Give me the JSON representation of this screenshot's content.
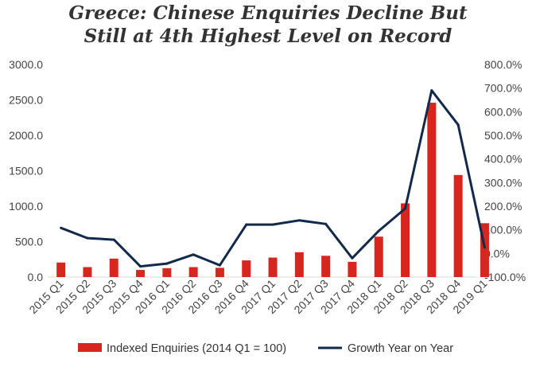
{
  "chart_data": {
    "type": "bar",
    "title": "Greece: Chinese Enquiries Decline But",
    "subtitle": "Still at 4th Highest Level on Record",
    "categories": [
      "2015 Q1",
      "2015 Q2",
      "2015 Q3",
      "2015 Q4",
      "2016 Q1",
      "2016 Q2",
      "2016 Q3",
      "2016 Q4",
      "2017 Q1",
      "2017 Q2",
      "2017 Q3",
      "2017 Q4",
      "2018 Q1",
      "2018 Q2",
      "2018 Q3",
      "2018 Q4",
      "2019 Q1"
    ],
    "series": [
      {
        "name": "Indexed Enquiries (2014 Q1 = 100)",
        "type": "bar",
        "axis": "left",
        "color": "#d7261e",
        "values": [
          205,
          140,
          260,
          100,
          125,
          140,
          130,
          235,
          275,
          350,
          300,
          215,
          570,
          1040,
          2460,
          1440,
          760
        ]
      },
      {
        "name": "Growth Year on Year",
        "type": "line",
        "axis": "right",
        "color": "#13294b",
        "values": [
          108,
          65,
          58,
          -55,
          -43,
          -5,
          -50,
          122,
          122,
          140,
          125,
          -20,
          95,
          190,
          690,
          545,
          25
        ]
      }
    ],
    "y_left": {
      "ylim": [
        0,
        3000
      ],
      "ticks": [
        "0.0",
        "500.0",
        "1000.0",
        "1500.0",
        "2000.0",
        "2500.0",
        "3000.0"
      ]
    },
    "y_right": {
      "ylim": [
        -100,
        800
      ],
      "ticks": [
        "-100.0%",
        "0.0%",
        "100.0%",
        "200.0%",
        "300.0%",
        "400.0%",
        "500.0%",
        "600.0%",
        "700.0%",
        "800.0%"
      ]
    },
    "grid": false,
    "legend": "bottom"
  }
}
